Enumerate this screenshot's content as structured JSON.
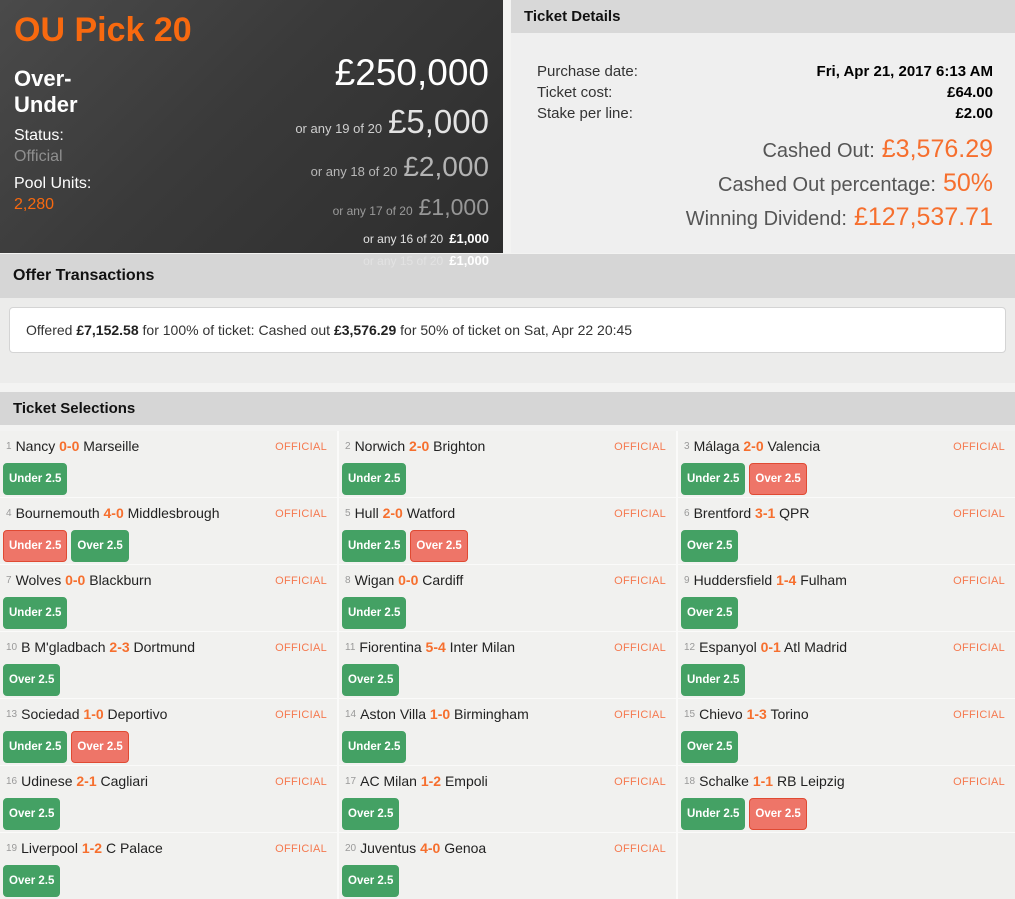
{
  "colors": {
    "accent_orange": "#f8690f",
    "accent_orange_bright": "#f66f2e",
    "official_badge": "#f5794f",
    "chip_win_green": "#44a164",
    "chip_lose_red": "#ee7568",
    "chip_lose_border": "#e04a33"
  },
  "pool": {
    "title": "OU Pick 20",
    "subtitle": "Over-Under",
    "status_label": "Status:",
    "status_value": "Official",
    "pool_units_label": "Pool Units:",
    "pool_units_value": "2,280",
    "prizes": [
      {
        "qualifier": "",
        "amount": "£250,000",
        "tier": 1
      },
      {
        "qualifier": "or any 19 of 20",
        "amount": "£5,000",
        "tier": 2
      },
      {
        "qualifier": "or any 18 of 20",
        "amount": "£2,000",
        "tier": 3
      },
      {
        "qualifier": "or any 17 of 20",
        "amount": "£1,000",
        "tier": 4
      },
      {
        "qualifier": "or any 16 of 20",
        "amount": "£1,000",
        "tier": 5
      },
      {
        "qualifier": "or any 15 of 20",
        "amount": "£1,000",
        "tier": 5
      }
    ]
  },
  "ticket_details": {
    "header": "Ticket Details",
    "rows": [
      {
        "label": "Purchase date:",
        "value": "Fri, Apr 21, 2017 6:13 AM"
      },
      {
        "label": "Ticket cost:",
        "value": "£64.00"
      },
      {
        "label": "Stake per line:",
        "value": "£2.00"
      }
    ],
    "highlights": [
      {
        "label": "Cashed Out:",
        "value": "£3,576.29"
      },
      {
        "label": "Cashed Out percentage:",
        "value": "50%"
      },
      {
        "label": "Winning Dividend:",
        "value": "£127,537.71"
      }
    ]
  },
  "offer_transactions": {
    "header": "Offer Transactions",
    "entry": {
      "prefix": "Offered ",
      "amount1": "£7,152.58",
      "middle": " for 100% of ticket: Cashed out ",
      "amount2": "£3,576.29",
      "suffix": " for 50% of ticket on Sat, Apr 22 20:45"
    }
  },
  "ticket_selections": {
    "header": "Ticket Selections",
    "selections": [
      {
        "num": "1",
        "home": "Nancy",
        "score": "0-0",
        "away": "Marseille",
        "status": "OFFICIAL",
        "picks": [
          {
            "label": "Under 2.5",
            "result": "win"
          }
        ]
      },
      {
        "num": "2",
        "home": "Norwich",
        "score": "2-0",
        "away": "Brighton",
        "status": "OFFICIAL",
        "picks": [
          {
            "label": "Under 2.5",
            "result": "win"
          }
        ]
      },
      {
        "num": "3",
        "home": "Málaga",
        "score": "2-0",
        "away": "Valencia",
        "status": "OFFICIAL",
        "picks": [
          {
            "label": "Under 2.5",
            "result": "win"
          },
          {
            "label": "Over 2.5",
            "result": "lose"
          }
        ]
      },
      {
        "num": "4",
        "home": "Bournemouth",
        "score": "4-0",
        "away": "Middlesbrough",
        "status": "OFFICIAL",
        "picks": [
          {
            "label": "Under 2.5",
            "result": "lose"
          },
          {
            "label": "Over 2.5",
            "result": "win"
          }
        ]
      },
      {
        "num": "5",
        "home": "Hull",
        "score": "2-0",
        "away": "Watford",
        "status": "OFFICIAL",
        "picks": [
          {
            "label": "Under 2.5",
            "result": "win"
          },
          {
            "label": "Over 2.5",
            "result": "lose"
          }
        ]
      },
      {
        "num": "6",
        "home": "Brentford",
        "score": "3-1",
        "away": "QPR",
        "status": "OFFICIAL",
        "picks": [
          {
            "label": "Over 2.5",
            "result": "win"
          }
        ]
      },
      {
        "num": "7",
        "home": "Wolves",
        "score": "0-0",
        "away": "Blackburn",
        "status": "OFFICIAL",
        "picks": [
          {
            "label": "Under 2.5",
            "result": "win"
          }
        ]
      },
      {
        "num": "8",
        "home": "Wigan",
        "score": "0-0",
        "away": "Cardiff",
        "status": "OFFICIAL",
        "picks": [
          {
            "label": "Under 2.5",
            "result": "win"
          }
        ]
      },
      {
        "num": "9",
        "home": "Huddersfield",
        "score": "1-4",
        "away": "Fulham",
        "status": "OFFICIAL",
        "picks": [
          {
            "label": "Over 2.5",
            "result": "win"
          }
        ]
      },
      {
        "num": "10",
        "home": "B M'gladbach",
        "score": "2-3",
        "away": "Dortmund",
        "status": "OFFICIAL",
        "picks": [
          {
            "label": "Over 2.5",
            "result": "win"
          }
        ]
      },
      {
        "num": "11",
        "home": "Fiorentina",
        "score": "5-4",
        "away": "Inter Milan",
        "status": "OFFICIAL",
        "picks": [
          {
            "label": "Over 2.5",
            "result": "win"
          }
        ]
      },
      {
        "num": "12",
        "home": "Espanyol",
        "score": "0-1",
        "away": "Atl Madrid",
        "status": "OFFICIAL",
        "picks": [
          {
            "label": "Under 2.5",
            "result": "win"
          }
        ]
      },
      {
        "num": "13",
        "home": "Sociedad",
        "score": "1-0",
        "away": "Deportivo",
        "status": "OFFICIAL",
        "picks": [
          {
            "label": "Under 2.5",
            "result": "win"
          },
          {
            "label": "Over 2.5",
            "result": "lose"
          }
        ]
      },
      {
        "num": "14",
        "home": "Aston Villa",
        "score": "1-0",
        "away": "Birmingham",
        "status": "OFFICIAL",
        "picks": [
          {
            "label": "Under 2.5",
            "result": "win"
          }
        ]
      },
      {
        "num": "15",
        "home": "Chievo",
        "score": "1-3",
        "away": "Torino",
        "status": "OFFICIAL",
        "picks": [
          {
            "label": "Over 2.5",
            "result": "win"
          }
        ]
      },
      {
        "num": "16",
        "home": "Udinese",
        "score": "2-1",
        "away": "Cagliari",
        "status": "OFFICIAL",
        "picks": [
          {
            "label": "Over 2.5",
            "result": "win"
          }
        ]
      },
      {
        "num": "17",
        "home": "AC Milan",
        "score": "1-2",
        "away": "Empoli",
        "status": "OFFICIAL",
        "picks": [
          {
            "label": "Over 2.5",
            "result": "win"
          }
        ]
      },
      {
        "num": "18",
        "home": "Schalke",
        "score": "1-1",
        "away": "RB Leipzig",
        "status": "OFFICIAL",
        "picks": [
          {
            "label": "Under 2.5",
            "result": "win"
          },
          {
            "label": "Over 2.5",
            "result": "lose"
          }
        ]
      },
      {
        "num": "19",
        "home": "Liverpool",
        "score": "1-2",
        "away": "C Palace",
        "status": "OFFICIAL",
        "picks": [
          {
            "label": "Over 2.5",
            "result": "win"
          }
        ]
      },
      {
        "num": "20",
        "home": "Juventus",
        "score": "4-0",
        "away": "Genoa",
        "status": "OFFICIAL",
        "picks": [
          {
            "label": "Over 2.5",
            "result": "win"
          }
        ]
      }
    ]
  }
}
